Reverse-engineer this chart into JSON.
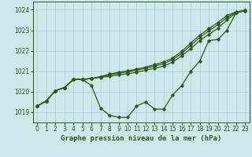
{
  "title": "Graphe pression niveau de la mer (hPa)",
  "x_min": 0,
  "x_max": 23,
  "y_min": 1018.5,
  "y_max": 1024.4,
  "y_ticks": [
    1019,
    1020,
    1021,
    1022,
    1023,
    1024
  ],
  "x_ticks": [
    0,
    1,
    2,
    3,
    4,
    5,
    6,
    7,
    8,
    9,
    10,
    11,
    12,
    13,
    14,
    15,
    16,
    17,
    18,
    19,
    20,
    21,
    22,
    23
  ],
  "background_color": "#cce8ea",
  "grid_color": "#aacccc",
  "line_color": "#2d5a1b",
  "s1": [
    1019.3,
    1019.55,
    1020.05,
    1020.2,
    1020.6,
    1020.6,
    1020.3,
    1019.2,
    1018.85,
    1018.75,
    1018.75,
    1019.3,
    1019.5,
    1019.15,
    1019.15,
    1019.85,
    1020.3,
    1021.0,
    1021.5,
    1022.5,
    1022.55,
    1023.0,
    1023.85,
    1023.95
  ],
  "s2": [
    1019.3,
    1019.55,
    1020.05,
    1020.2,
    1020.6,
    1020.6,
    1020.65,
    1020.7,
    1020.75,
    1020.82,
    1020.88,
    1020.95,
    1021.05,
    1021.15,
    1021.25,
    1021.45,
    1021.75,
    1022.1,
    1022.5,
    1022.8,
    1023.1,
    1023.5,
    1023.85,
    1023.95
  ],
  "s3": [
    1019.3,
    1019.55,
    1020.05,
    1020.2,
    1020.6,
    1020.6,
    1020.65,
    1020.72,
    1020.82,
    1020.9,
    1020.97,
    1021.05,
    1021.15,
    1021.25,
    1021.37,
    1021.57,
    1021.87,
    1022.27,
    1022.65,
    1022.97,
    1023.27,
    1023.62,
    1023.88,
    1023.97
  ],
  "s4": [
    1019.3,
    1019.55,
    1020.05,
    1020.2,
    1020.6,
    1020.6,
    1020.65,
    1020.74,
    1020.86,
    1020.95,
    1021.02,
    1021.1,
    1021.2,
    1021.32,
    1021.45,
    1021.65,
    1021.97,
    1022.38,
    1022.76,
    1023.08,
    1023.38,
    1023.72,
    1023.9,
    1023.97
  ]
}
